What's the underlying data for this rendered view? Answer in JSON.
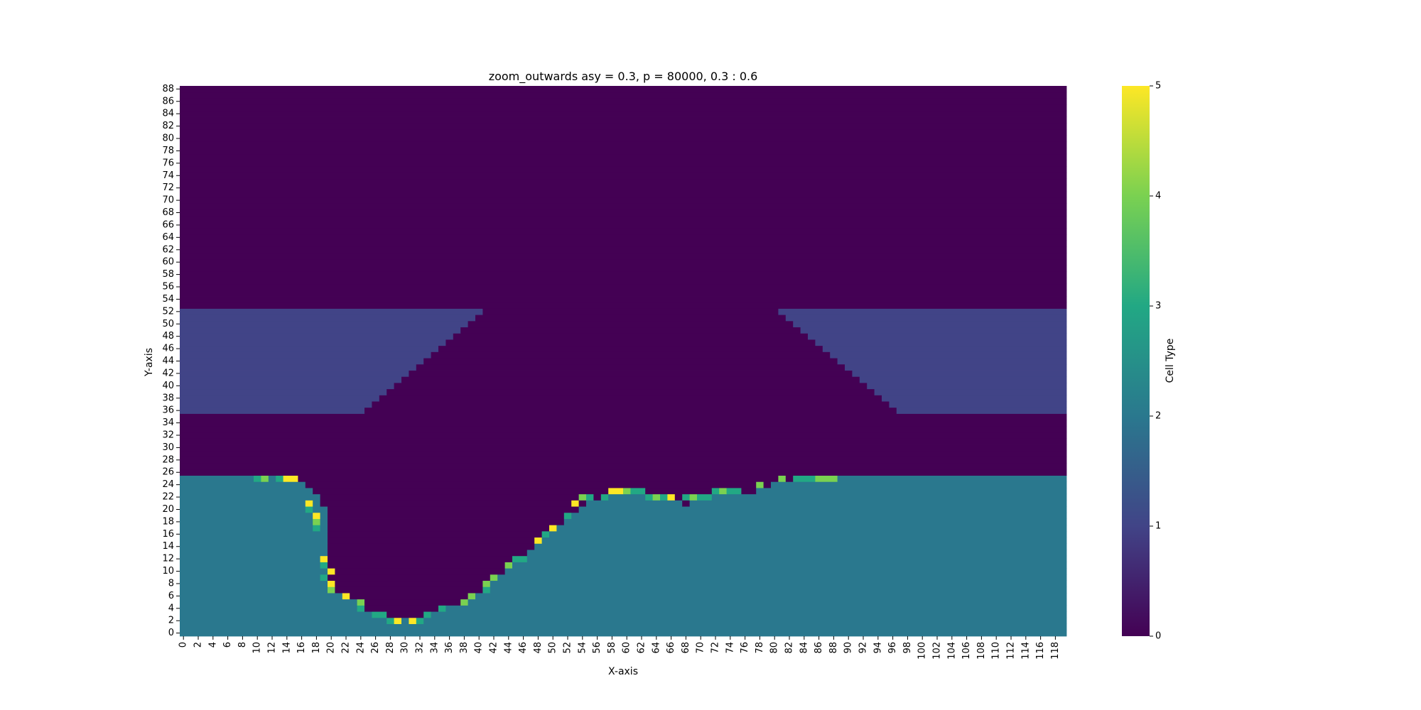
{
  "chart_data": {
    "type": "heatmap",
    "title": "zoom_outwards asy = 0.3, p = 80000, 0.3 : 0.6",
    "xlabel": "X-axis",
    "ylabel": "Y-axis",
    "grid": false,
    "nx": 120,
    "ny": 89,
    "x_tick_labels": [
      "0",
      "2",
      "4",
      "6",
      "8",
      "10",
      "12",
      "14",
      "16",
      "18",
      "20",
      "22",
      "24",
      "26",
      "28",
      "30",
      "32",
      "34",
      "36",
      "38",
      "40",
      "42",
      "44",
      "46",
      "48",
      "50",
      "52",
      "54",
      "56",
      "58",
      "60",
      "62",
      "64",
      "66",
      "68",
      "70",
      "72",
      "74",
      "76",
      "78",
      "80",
      "82",
      "84",
      "86",
      "88",
      "90",
      "92",
      "94",
      "96",
      "98",
      "100",
      "102",
      "104",
      "106",
      "108",
      "110",
      "112",
      "114",
      "116",
      "118"
    ],
    "y_tick_labels": [
      "0",
      "2",
      "4",
      "6",
      "8",
      "10",
      "12",
      "14",
      "16",
      "18",
      "20",
      "22",
      "24",
      "26",
      "28",
      "30",
      "32",
      "34",
      "36",
      "38",
      "40",
      "42",
      "44",
      "46",
      "48",
      "50",
      "52",
      "54",
      "56",
      "58",
      "60",
      "62",
      "64",
      "66",
      "68",
      "70",
      "72",
      "74",
      "76",
      "78",
      "80",
      "82",
      "84",
      "86",
      "88"
    ],
    "colorbar": {
      "label": "Cell Type",
      "range": [
        0,
        5
      ],
      "tick_labels": [
        "0",
        "1",
        "2",
        "3",
        "4",
        "5"
      ],
      "colormap": "viridis"
    },
    "band_value": 1,
    "band_rows": [
      36,
      52
    ],
    "left_band_right_edge": [
      24,
      25,
      26,
      27,
      28,
      29,
      30,
      31,
      32,
      33,
      34,
      35,
      36,
      37,
      38,
      39,
      40
    ],
    "right_band_left_edge": [
      97,
      96,
      95,
      94,
      93,
      92,
      91,
      90,
      89,
      88,
      87,
      86,
      85,
      84,
      83,
      82,
      81
    ],
    "ground_value": 2,
    "ground_top_row": [
      25,
      25,
      25,
      25,
      25,
      25,
      25,
      25,
      25,
      25,
      25,
      25,
      25,
      25,
      25,
      25,
      24,
      23,
      22,
      20,
      7,
      6,
      5,
      5,
      4,
      3,
      3,
      3,
      2,
      2,
      2,
      2,
      2,
      3,
      3,
      4,
      4,
      4,
      5,
      6,
      6,
      7,
      8,
      9,
      10,
      11,
      12,
      13,
      14,
      15,
      16,
      17,
      18,
      19,
      20,
      21,
      21,
      21,
      22,
      22,
      22,
      22,
      22,
      22,
      21,
      21,
      21,
      21,
      20,
      21,
      21,
      21,
      22,
      22,
      22,
      22,
      22,
      22,
      23,
      23,
      24,
      24,
      24,
      24,
      24,
      24,
      24,
      24,
      24,
      25,
      25,
      25,
      25,
      25,
      25,
      25,
      25,
      25,
      25,
      25,
      25,
      25,
      25,
      25,
      25,
      25,
      25,
      25,
      25,
      25,
      25,
      25,
      25,
      25,
      25,
      25,
      25,
      25,
      25,
      25
    ],
    "special_cells": [
      [
        10,
        25,
        3
      ],
      [
        11,
        25,
        4
      ],
      [
        12,
        25,
        2
      ],
      [
        13,
        25,
        3
      ],
      [
        14,
        25,
        5
      ],
      [
        15,
        25,
        5
      ],
      [
        17,
        21,
        5
      ],
      [
        17,
        20,
        3
      ],
      [
        18,
        19,
        5
      ],
      [
        18,
        18,
        4
      ],
      [
        18,
        17,
        3
      ],
      [
        19,
        12,
        5
      ],
      [
        19,
        11,
        3
      ],
      [
        19,
        10,
        2
      ],
      [
        19,
        9,
        3
      ],
      [
        20,
        10,
        5
      ],
      [
        20,
        8,
        5
      ],
      [
        20,
        7,
        4
      ],
      [
        22,
        6,
        5
      ],
      [
        24,
        5,
        4
      ],
      [
        24,
        4,
        3
      ],
      [
        26,
        3,
        3
      ],
      [
        27,
        3,
        3
      ],
      [
        28,
        2,
        3
      ],
      [
        29,
        2,
        5
      ],
      [
        31,
        2,
        5
      ],
      [
        32,
        2,
        3
      ],
      [
        33,
        3,
        3
      ],
      [
        35,
        4,
        3
      ],
      [
        38,
        5,
        4
      ],
      [
        39,
        6,
        4
      ],
      [
        41,
        7,
        3
      ],
      [
        41,
        8,
        4
      ],
      [
        42,
        9,
        4
      ],
      [
        44,
        11,
        4
      ],
      [
        45,
        12,
        3
      ],
      [
        46,
        12,
        3
      ],
      [
        48,
        15,
        5
      ],
      [
        49,
        16,
        3
      ],
      [
        50,
        17,
        5
      ],
      [
        52,
        19,
        3
      ],
      [
        53,
        21,
        5
      ],
      [
        54,
        22,
        4
      ],
      [
        55,
        22,
        3
      ],
      [
        57,
        22,
        3
      ],
      [
        58,
        23,
        5
      ],
      [
        59,
        23,
        5
      ],
      [
        60,
        23,
        4
      ],
      [
        61,
        23,
        3
      ],
      [
        62,
        23,
        3
      ],
      [
        63,
        22,
        3
      ],
      [
        64,
        22,
        4
      ],
      [
        65,
        22,
        3
      ],
      [
        66,
        22,
        5
      ],
      [
        68,
        22,
        3
      ],
      [
        69,
        22,
        4
      ],
      [
        70,
        22,
        3
      ],
      [
        71,
        22,
        3
      ],
      [
        72,
        23,
        3
      ],
      [
        73,
        23,
        4
      ],
      [
        74,
        23,
        3
      ],
      [
        75,
        23,
        3
      ],
      [
        78,
        24,
        4
      ],
      [
        81,
        25,
        4
      ],
      [
        83,
        25,
        3
      ],
      [
        84,
        25,
        3
      ],
      [
        85,
        25,
        3
      ],
      [
        86,
        25,
        4
      ],
      [
        87,
        25,
        4
      ],
      [
        88,
        25,
        4
      ]
    ]
  }
}
